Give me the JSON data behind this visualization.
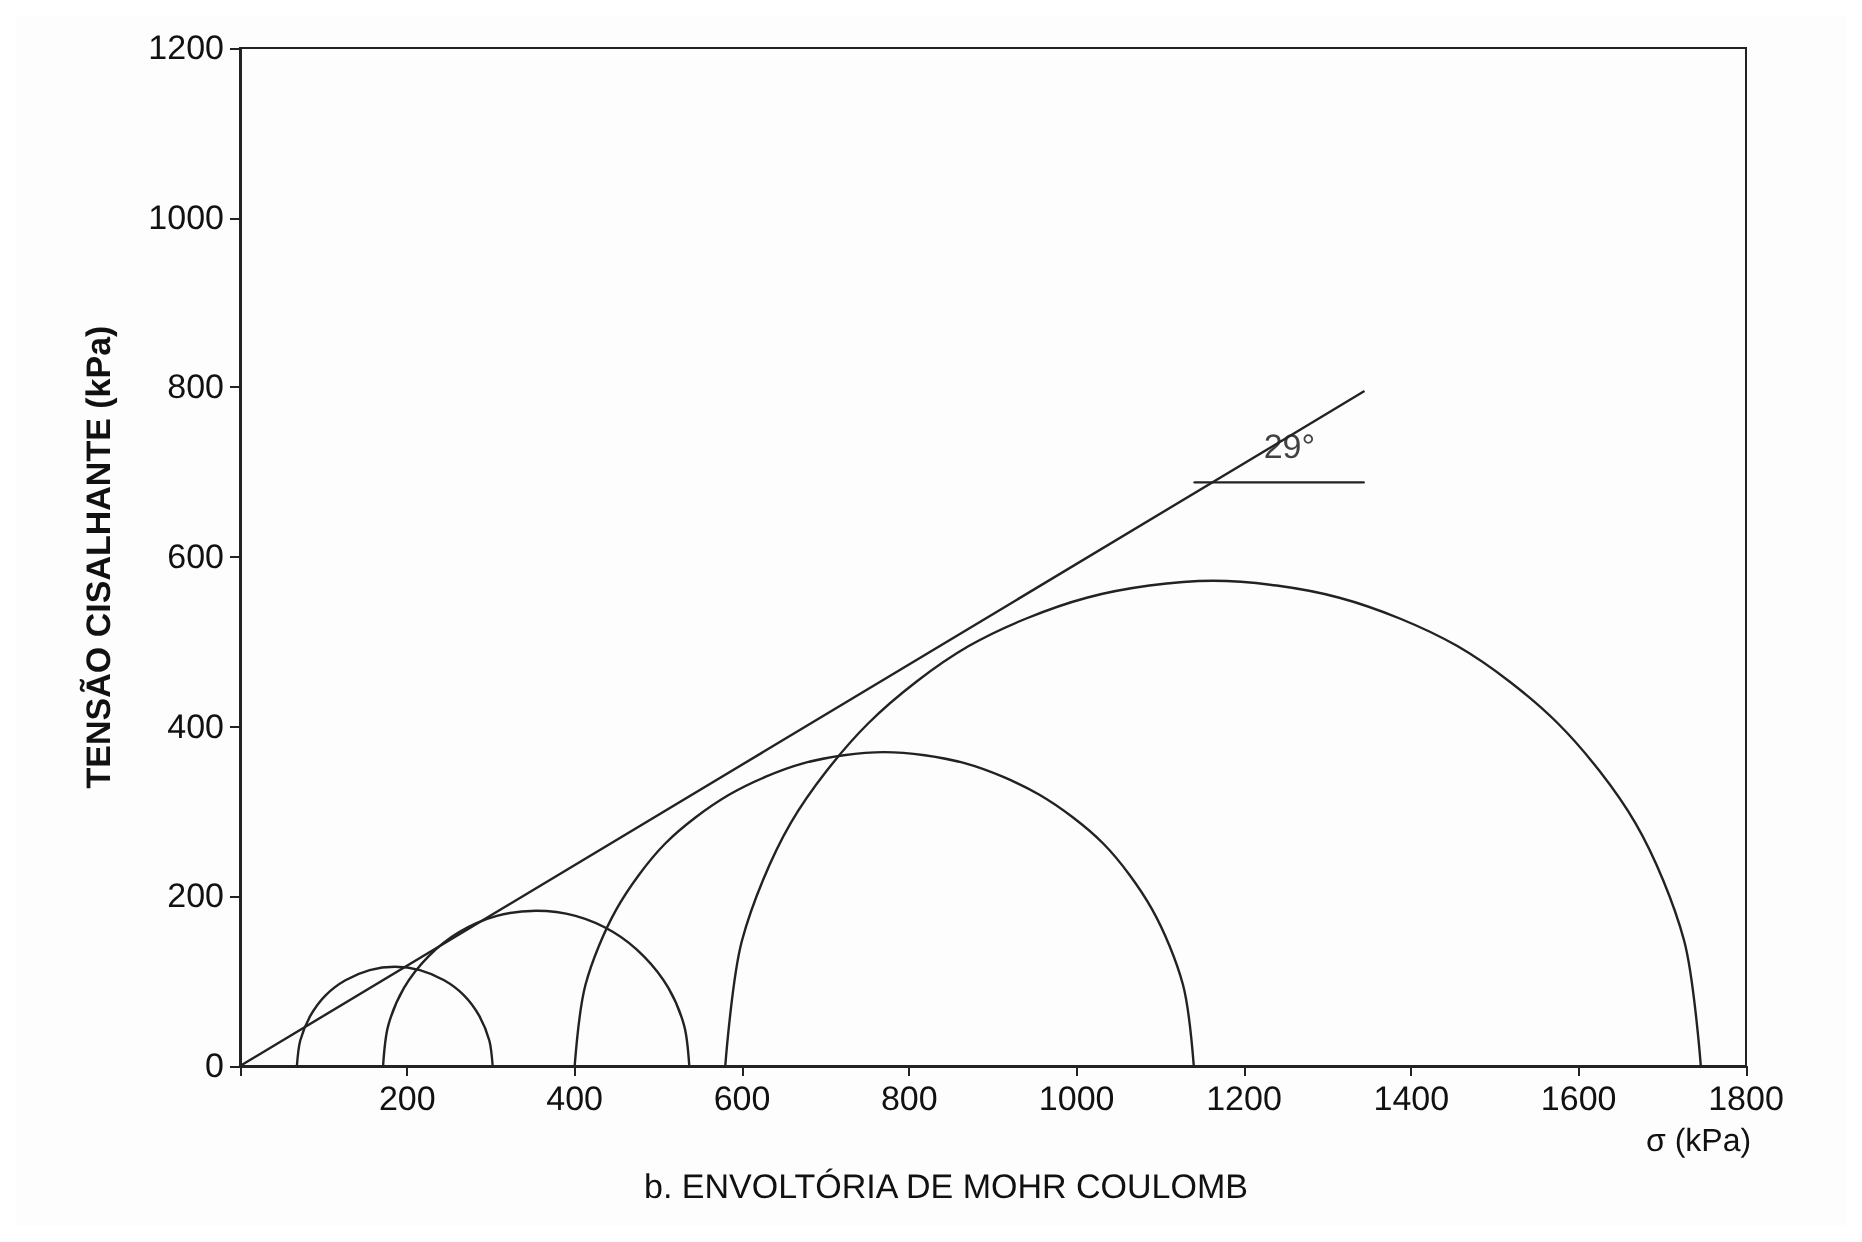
{
  "chart_data": {
    "type": "line",
    "title": "b. ENVOLTÓRIA DE MOHR COULOMB",
    "xlabel": "σ (kPa)",
    "ylabel": "TENSÃO CISALHANTE (kPa)",
    "xlim": [
      0,
      1800
    ],
    "ylim": [
      0,
      1200
    ],
    "xticks": [
      {
        "value": 0,
        "label": null
      },
      200,
      400,
      600,
      800,
      1000,
      1200,
      1400,
      1600,
      1800
    ],
    "yticks": [
      0,
      200,
      400,
      600,
      800,
      1000,
      1200
    ],
    "grid": false,
    "marker": "none",
    "line_style": "solid",
    "annotations": [
      "29°"
    ],
    "series": [
      {
        "color": "#222222",
        "x": [
          0,
          1343
        ],
        "values": [
          0,
          795
        ]
      },
      {
        "color": "#222222",
        "x": [
          1141,
          1343
        ],
        "values": [
          688,
          688
        ]
      },
      {
        "color": "#222222",
        "x": [
          302,
          298,
          286,
          268,
          244,
          215,
          185,
          155,
          126,
          102,
          84,
          72,
          68
        ],
        "values": [
          0,
          30,
          59,
          83,
          101,
          113,
          117,
          113,
          101,
          83,
          59,
          30,
          0
        ]
      },
      {
        "color": "#222222",
        "x": [
          537,
          531,
          512,
          483,
          446,
          401,
          354,
          307,
          262,
          225,
          196,
          177,
          171
        ],
        "values": [
          0,
          47,
          92,
          129,
          158,
          177,
          183,
          177,
          158,
          129,
          92,
          47,
          0
        ]
      },
      {
        "color": "#222222",
        "x": [
          1140,
          1127,
          1090,
          1032,
          955,
          866,
          770,
          674,
          585,
          508,
          450,
          413,
          400
        ],
        "values": [
          0,
          96,
          185,
          262,
          320,
          357,
          370,
          357,
          320,
          262,
          185,
          96,
          0
        ]
      },
      {
        "color": "#222222",
        "x": [
          1746,
          1726,
          1668,
          1575,
          1455,
          1314,
          1163,
          1012,
          871,
          751,
          658,
          600,
          580
        ],
        "values": [
          0,
          148,
          286,
          404,
          495,
          552,
          572,
          552,
          495,
          404,
          286,
          148,
          0
        ]
      }
    ]
  }
}
